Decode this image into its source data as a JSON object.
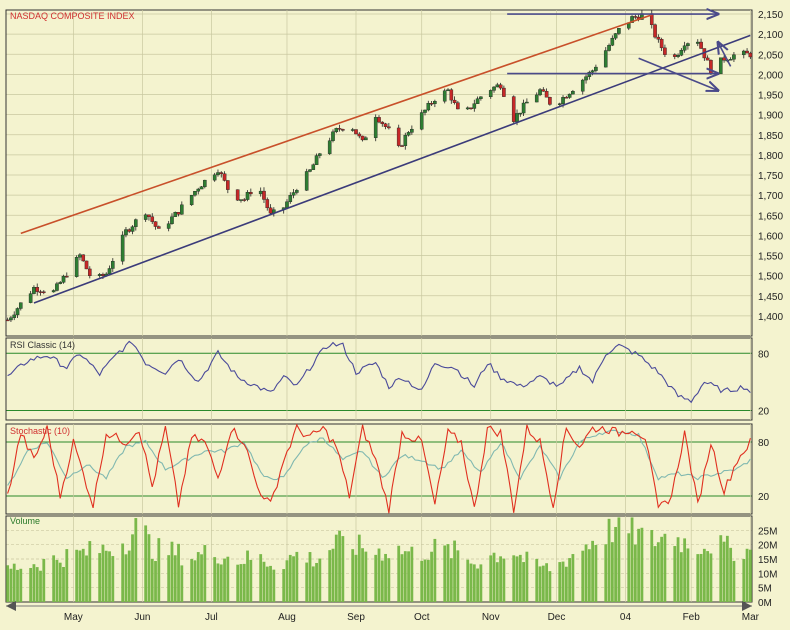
{
  "colors": {
    "background": "#f4f3cf",
    "grid": "#c9c8a0",
    "border": "#333333",
    "up_candle": "#2e7d32",
    "down_candle": "#c62828",
    "resistance_line": "#c8502a",
    "support_line": "#3b3b7a",
    "target_arrows": "#4a4a8a",
    "rsi_line": "#4a4a9a",
    "stoch_k": "#e03020",
    "stoch_d": "#80b8b0",
    "volume_bar": "#7ab84a",
    "level_line": "#2a8a2a"
  },
  "chart_data": [
    {
      "type": "candlestick",
      "title": "NASDAQ COMPOSITE INDEX",
      "x_labels": [
        "May",
        "Jun",
        "Jul",
        "Aug",
        "Sep",
        "Oct",
        "Nov",
        "Dec",
        "04",
        "Feb",
        "Mar"
      ],
      "x_label_days": [
        20,
        41,
        62,
        85,
        106,
        126,
        147,
        167,
        188,
        208,
        226
      ],
      "ylim": [
        1350,
        2160
      ],
      "y_ticks": [
        1400,
        1450,
        1500,
        1550,
        1600,
        1650,
        1700,
        1750,
        1800,
        1850,
        1900,
        1950,
        2000,
        2050,
        2100,
        2150
      ],
      "y_tick_labels": [
        "1,400",
        "1,450",
        "1,500",
        "1,550",
        "1,600",
        "1,650",
        "1,700",
        "1,750",
        "1,800",
        "1,850",
        "1,900",
        "1,950",
        "2,000",
        "2,050",
        "2,100",
        "2,150"
      ],
      "anchors": [
        [
          0,
          1390
        ],
        [
          8,
          1470
        ],
        [
          14,
          1460
        ],
        [
          22,
          1550
        ],
        [
          26,
          1485
        ],
        [
          30,
          1505
        ],
        [
          36,
          1610
        ],
        [
          42,
          1660
        ],
        [
          46,
          1610
        ],
        [
          52,
          1660
        ],
        [
          58,
          1720
        ],
        [
          64,
          1765
        ],
        [
          68,
          1700
        ],
        [
          72,
          1690
        ],
        [
          76,
          1730
        ],
        [
          80,
          1650
        ],
        [
          84,
          1670
        ],
        [
          88,
          1720
        ],
        [
          92,
          1760
        ],
        [
          96,
          1820
        ],
        [
          100,
          1860
        ],
        [
          104,
          1880
        ],
        [
          108,
          1830
        ],
        [
          112,
          1900
        ],
        [
          116,
          1860
        ],
        [
          118,
          1800
        ],
        [
          122,
          1860
        ],
        [
          126,
          1900
        ],
        [
          130,
          1940
        ],
        [
          134,
          1960
        ],
        [
          138,
          1890
        ],
        [
          142,
          1930
        ],
        [
          146,
          1960
        ],
        [
          150,
          1975
        ],
        [
          154,
          1890
        ],
        [
          158,
          1930
        ],
        [
          162,
          1960
        ],
        [
          166,
          1920
        ],
        [
          170,
          1950
        ],
        [
          174,
          1980
        ],
        [
          178,
          2010
        ],
        [
          182,
          2060
        ],
        [
          186,
          2110
        ],
        [
          190,
          2140
        ],
        [
          194,
          2150
        ],
        [
          198,
          2080
        ],
        [
          202,
          2030
        ],
        [
          206,
          2080
        ],
        [
          210,
          2085
        ],
        [
          214,
          2010
        ],
        [
          218,
          2040
        ],
        [
          222,
          2050
        ],
        [
          225,
          2050
        ]
      ],
      "trendlines": [
        {
          "name": "resistance",
          "points": [
            [
              4,
              1605
            ],
            [
              196,
              2148
            ]
          ]
        },
        {
          "name": "support",
          "points": [
            [
              8,
              1432
            ],
            [
              226,
              2097
            ]
          ]
        }
      ],
      "target_arrows": [
        {
          "from": [
            152,
            2150
          ],
          "to": [
            240,
            2150
          ]
        },
        {
          "from": [
            152,
            2002
          ],
          "to": [
            240,
            2002
          ]
        },
        {
          "from": [
            192,
            2040
          ],
          "to": [
            240,
            1960
          ]
        },
        {
          "from": [
            220,
            2020
          ],
          "to": [
            240,
            2080
          ]
        }
      ]
    },
    {
      "type": "line",
      "title": "RSI Classic (14)",
      "ylim": [
        10,
        96
      ],
      "y_ticks": [
        80,
        20
      ],
      "y_tick_labels": [
        "80",
        "20"
      ],
      "anchors": [
        [
          0,
          55
        ],
        [
          6,
          72
        ],
        [
          12,
          78
        ],
        [
          18,
          65
        ],
        [
          22,
          80
        ],
        [
          28,
          58
        ],
        [
          34,
          82
        ],
        [
          38,
          92
        ],
        [
          42,
          70
        ],
        [
          48,
          60
        ],
        [
          52,
          75
        ],
        [
          58,
          50
        ],
        [
          64,
          80
        ],
        [
          70,
          55
        ],
        [
          76,
          45
        ],
        [
          80,
          38
        ],
        [
          84,
          55
        ],
        [
          88,
          45
        ],
        [
          94,
          75
        ],
        [
          98,
          90
        ],
        [
          102,
          88
        ],
        [
          106,
          60
        ],
        [
          112,
          70
        ],
        [
          116,
          45
        ],
        [
          120,
          55
        ],
        [
          126,
          40
        ],
        [
          130,
          70
        ],
        [
          136,
          65
        ],
        [
          142,
          45
        ],
        [
          146,
          70
        ],
        [
          150,
          55
        ],
        [
          156,
          45
        ],
        [
          162,
          55
        ],
        [
          168,
          45
        ],
        [
          174,
          65
        ],
        [
          178,
          50
        ],
        [
          182,
          80
        ],
        [
          186,
          88
        ],
        [
          192,
          78
        ],
        [
          198,
          60
        ],
        [
          204,
          35
        ],
        [
          208,
          30
        ],
        [
          212,
          50
        ],
        [
          218,
          40
        ],
        [
          224,
          45
        ],
        [
          226,
          40
        ]
      ]
    },
    {
      "type": "line",
      "title": "Stochastic (10)",
      "ylim": [
        0,
        100
      ],
      "y_ticks": [
        80,
        20
      ],
      "y_tick_labels": [
        "80",
        "20"
      ],
      "series": [
        {
          "name": "%K",
          "anchors": [
            [
              0,
              20
            ],
            [
              4,
              90
            ],
            [
              8,
              60
            ],
            [
              12,
              95
            ],
            [
              16,
              20
            ],
            [
              20,
              80
            ],
            [
              26,
              10
            ],
            [
              30,
              90
            ],
            [
              36,
              80
            ],
            [
              40,
              95
            ],
            [
              44,
              30
            ],
            [
              48,
              95
            ],
            [
              52,
              10
            ],
            [
              56,
              85
            ],
            [
              60,
              80
            ],
            [
              64,
              40
            ],
            [
              68,
              95
            ],
            [
              72,
              80
            ],
            [
              76,
              30
            ],
            [
              80,
              10
            ],
            [
              84,
              60
            ],
            [
              88,
              95
            ],
            [
              92,
              85
            ],
            [
              96,
              95
            ],
            [
              100,
              75
            ],
            [
              104,
              20
            ],
            [
              108,
              95
            ],
            [
              112,
              60
            ],
            [
              116,
              5
            ],
            [
              120,
              90
            ],
            [
              126,
              80
            ],
            [
              130,
              10
            ],
            [
              134,
              90
            ],
            [
              138,
              80
            ],
            [
              142,
              5
            ],
            [
              146,
              95
            ],
            [
              150,
              90
            ],
            [
              154,
              5
            ],
            [
              158,
              95
            ],
            [
              162,
              80
            ],
            [
              166,
              10
            ],
            [
              170,
              95
            ],
            [
              174,
              75
            ],
            [
              178,
              95
            ],
            [
              182,
              95
            ],
            [
              186,
              90
            ],
            [
              190,
              95
            ],
            [
              194,
              85
            ],
            [
              198,
              5
            ],
            [
              202,
              20
            ],
            [
              206,
              90
            ],
            [
              210,
              10
            ],
            [
              214,
              80
            ],
            [
              218,
              25
            ],
            [
              222,
              60
            ],
            [
              226,
              80
            ]
          ]
        },
        {
          "name": "%D",
          "anchors": [
            [
              0,
              30
            ],
            [
              6,
              70
            ],
            [
              12,
              80
            ],
            [
              18,
              40
            ],
            [
              24,
              55
            ],
            [
              30,
              40
            ],
            [
              36,
              75
            ],
            [
              42,
              80
            ],
            [
              48,
              50
            ],
            [
              54,
              60
            ],
            [
              60,
              70
            ],
            [
              66,
              70
            ],
            [
              72,
              80
            ],
            [
              78,
              40
            ],
            [
              84,
              40
            ],
            [
              90,
              75
            ],
            [
              96,
              85
            ],
            [
              102,
              60
            ],
            [
              108,
              70
            ],
            [
              114,
              40
            ],
            [
              120,
              65
            ],
            [
              126,
              60
            ],
            [
              132,
              50
            ],
            [
              138,
              70
            ],
            [
              144,
              45
            ],
            [
              150,
              80
            ],
            [
              156,
              40
            ],
            [
              162,
              75
            ],
            [
              168,
              40
            ],
            [
              174,
              80
            ],
            [
              180,
              90
            ],
            [
              186,
              92
            ],
            [
              192,
              88
            ],
            [
              198,
              40
            ],
            [
              204,
              45
            ],
            [
              210,
              40
            ],
            [
              216,
              45
            ],
            [
              222,
              50
            ],
            [
              226,
              60
            ]
          ]
        }
      ]
    },
    {
      "type": "bar",
      "title": "Volume",
      "ylim": [
        0,
        30
      ],
      "y_ticks": [
        0,
        5,
        10,
        15,
        20,
        25
      ],
      "y_tick_labels": [
        "0M",
        "5M",
        "10M",
        "15M",
        "20M",
        "25M"
      ],
      "anchors": [
        [
          0,
          12
        ],
        [
          10,
          14
        ],
        [
          20,
          17
        ],
        [
          30,
          19
        ],
        [
          36,
          22
        ],
        [
          40,
          28
        ],
        [
          44,
          19
        ],
        [
          50,
          18
        ],
        [
          56,
          16
        ],
        [
          62,
          18
        ],
        [
          70,
          15
        ],
        [
          76,
          16
        ],
        [
          82,
          13
        ],
        [
          88,
          17
        ],
        [
          94,
          15
        ],
        [
          100,
          21
        ],
        [
          106,
          20
        ],
        [
          112,
          18
        ],
        [
          118,
          19
        ],
        [
          124,
          17
        ],
        [
          130,
          19
        ],
        [
          136,
          18
        ],
        [
          142,
          14
        ],
        [
          148,
          17
        ],
        [
          154,
          18
        ],
        [
          160,
          13
        ],
        [
          166,
          12
        ],
        [
          172,
          17
        ],
        [
          178,
          22
        ],
        [
          184,
          26
        ],
        [
          190,
          25
        ],
        [
          196,
          22
        ],
        [
          202,
          24
        ],
        [
          208,
          20
        ],
        [
          214,
          21
        ],
        [
          220,
          19
        ],
        [
          226,
          18
        ]
      ]
    }
  ]
}
